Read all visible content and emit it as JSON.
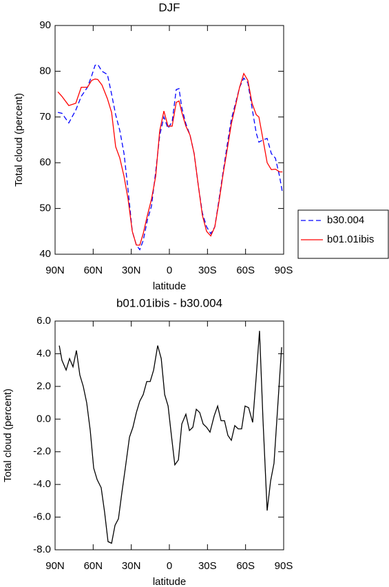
{
  "chart_data": [
    {
      "type": "line",
      "title": "DJF",
      "xlabel": "latitude",
      "ylabel": "Total cloud (percent)",
      "x": [
        87.8,
        84.6,
        79.2,
        73.7,
        69.4,
        64.5,
        61.2,
        58.5,
        56.4,
        53.1,
        48.8,
        45.5,
        42.3,
        39.0,
        35.7,
        32.5,
        29.2,
        26.0,
        23.3,
        20.6,
        17.3,
        14.1,
        10.8,
        7.6,
        4.3,
        1.1,
        -2.2,
        -5.4,
        -7.6,
        -9.8,
        -13.0,
        -16.3,
        -19.5,
        -22.8,
        -26.0,
        -29.3,
        -32.6,
        -35.8,
        -39.1,
        -42.3,
        -45.6,
        -48.8,
        -52.1,
        -55.3,
        -58.6,
        -61.8,
        -65.1,
        -68.4,
        -70.5,
        -73.8,
        -77.0,
        -80.3,
        -83.5,
        -86.8,
        -89.0
      ],
      "series": [
        {
          "name": "b30.004",
          "color": "#0000ff",
          "style": "dashed",
          "values": [
            71,
            70.8,
            68.7,
            71.5,
            74.5,
            76.5,
            79,
            81.3,
            81.5,
            80,
            79.3,
            75,
            70.5,
            67,
            62,
            54,
            45,
            42,
            41,
            43,
            47.5,
            50.5,
            58,
            66,
            70,
            67.5,
            69,
            76,
            76.2,
            72,
            68.5,
            66,
            62,
            55,
            49,
            46,
            44.5,
            46,
            52,
            58,
            64,
            69.5,
            73,
            76.5,
            78.5,
            77.5,
            72,
            66.5,
            64.5,
            65,
            65.3,
            62,
            61,
            57,
            53.5
          ]
        },
        {
          "name": "b01.01ibis",
          "color": "#ff0000",
          "style": "solid",
          "values": [
            75.5,
            74.5,
            72.5,
            73,
            76.5,
            76.5,
            78,
            78.3,
            78.2,
            77,
            74,
            71,
            63.5,
            61,
            57,
            52,
            45,
            42,
            42,
            44.5,
            48.5,
            52,
            57,
            67,
            71.3,
            68,
            68,
            73.2,
            73.5,
            71,
            68,
            66,
            62,
            55,
            48.5,
            45,
            44,
            46,
            51.5,
            57.5,
            63,
            68.5,
            72.5,
            76.5,
            79.5,
            78,
            73,
            70.5,
            70,
            65,
            60,
            58.5,
            58.6,
            58,
            58
          ]
        }
      ],
      "xlim": [
        90,
        -90
      ],
      "xticks": [
        {
          "value": 90,
          "label": "90N"
        },
        {
          "value": 60,
          "label": "60N"
        },
        {
          "value": 30,
          "label": "30N"
        },
        0,
        {
          "value": -30,
          "label": "30S"
        },
        {
          "value": -60,
          "label": "60S"
        },
        {
          "value": -90,
          "label": "90S"
        }
      ],
      "ylim": [
        40,
        90
      ],
      "yticks": [
        40,
        50,
        60,
        70,
        80,
        90
      ],
      "legend": "right"
    },
    {
      "type": "line",
      "title": "b01.01ibis - b30.004",
      "xlabel": "latitude",
      "ylabel": "Total cloud (percent)",
      "x": [
        86.7,
        84.6,
        81.3,
        78.6,
        75.9,
        73.2,
        70.5,
        67.8,
        65.1,
        62.3,
        59.6,
        56.9,
        53.7,
        51.0,
        48.3,
        45.5,
        42.8,
        40.1,
        37.4,
        34.7,
        31.4,
        28.7,
        26.0,
        23.3,
        20.6,
        17.8,
        15.1,
        12.4,
        9.2,
        6.4,
        3.7,
        1.0,
        -1.6,
        -4.3,
        -7.1,
        -9.8,
        -13.0,
        -15.8,
        -18.5,
        -21.2,
        -23.9,
        -26.6,
        -29.3,
        -32.0,
        -35.3,
        -38.0,
        -40.7,
        -43.4,
        -46.1,
        -48.8,
        -51.5,
        -54.2,
        -56.9,
        -59.6,
        -62.4,
        -65.6,
        -68.3,
        -71.0,
        -73.7,
        -77.0,
        -79.7,
        -82.4,
        -85.1,
        -88.4
      ],
      "values": [
        4.5,
        3.6,
        3.0,
        3.7,
        3.2,
        4.2,
        2.7,
        2.0,
        1.0,
        -0.7,
        -3.0,
        -3.7,
        -4.2,
        -5.7,
        -7.5,
        -7.6,
        -6.5,
        -6.1,
        -4.5,
        -3.0,
        -1.1,
        -0.5,
        0.4,
        1.1,
        1.5,
        2.3,
        2.3,
        3.0,
        4.5,
        3.7,
        1.5,
        0.8,
        -1.0,
        -2.8,
        -2.5,
        -0.3,
        0.3,
        -0.7,
        -0.5,
        0.6,
        0.4,
        -0.3,
        -0.5,
        -0.8,
        0.2,
        0.8,
        -0.1,
        -0.1,
        -1.0,
        -1.3,
        -0.4,
        -0.6,
        -0.6,
        0.8,
        0.7,
        -0.2,
        2.5,
        5.4,
        0.0,
        -5.6,
        -3.8,
        -2.7,
        0.5,
        4.4
      ],
      "color": "#000000",
      "xlim": [
        90,
        -90
      ],
      "xticks": [
        {
          "value": 90,
          "label": "90N"
        },
        {
          "value": 60,
          "label": "60N"
        },
        {
          "value": 30,
          "label": "30N"
        },
        0,
        {
          "value": -30,
          "label": "30S"
        },
        {
          "value": -60,
          "label": "60S"
        },
        {
          "value": -90,
          "label": "90S"
        }
      ],
      "ylim": [
        -8,
        6
      ],
      "yticks": [
        {
          "value": -8,
          "label": "-8.0"
        },
        {
          "value": -6,
          "label": "-6.0"
        },
        {
          "value": -4,
          "label": "-4.0"
        },
        {
          "value": -2,
          "label": "-2.0"
        },
        {
          "value": 0,
          "label": "0.0"
        },
        {
          "value": 2,
          "label": "2.0"
        },
        {
          "value": 4,
          "label": "4.0"
        },
        {
          "value": 6,
          "label": "6.0"
        }
      ]
    }
  ]
}
